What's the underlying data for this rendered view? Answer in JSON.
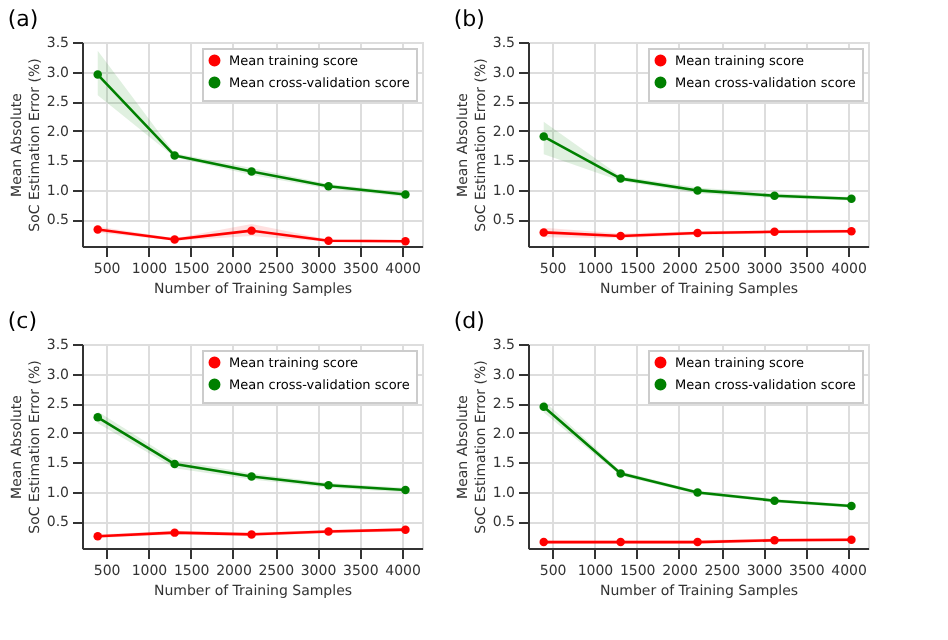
{
  "chart_data": [
    {
      "type": "line",
      "title": "(a)",
      "xlabel": "Number of Training Samples",
      "ylabel": "Mean Absolute\nSoC Estimation Error (%)",
      "x": [
        400,
        1310,
        2220,
        3130,
        4040
      ],
      "xlim": [
        214,
        4236
      ],
      "ylim": [
        0.05,
        3.5
      ],
      "xticks": [
        500,
        1000,
        1500,
        2000,
        2500,
        3000,
        3500,
        4000
      ],
      "yticks": [
        0.5,
        {
          "value": 1,
          "label": "1.0"
        },
        1.5,
        {
          "value": 2,
          "label": "2.0"
        },
        2.5,
        {
          "value": 3,
          "label": "3.0"
        },
        3.5
      ],
      "grid": true,
      "legend": "top right",
      "marker": "circle",
      "line_style": "solid",
      "series": [
        {
          "name": "Mean training score",
          "color": "#ff0000",
          "values": [
            0.33,
            0.16,
            0.31,
            0.14,
            0.13
          ],
          "lower": [
            0.28,
            0.14,
            0.22,
            0.12,
            0.11
          ],
          "upper": [
            0.38,
            0.18,
            0.42,
            0.16,
            0.15
          ]
        },
        {
          "name": "Mean cross-validation score",
          "color": "#008000",
          "values": [
            2.95,
            1.58,
            1.31,
            1.06,
            0.92
          ],
          "lower": [
            2.6,
            1.55,
            1.25,
            1.02,
            0.88
          ],
          "upper": [
            3.35,
            1.62,
            1.37,
            1.1,
            0.96
          ]
        }
      ]
    },
    {
      "type": "line",
      "title": "(b)",
      "xlabel": "Number of Training Samples",
      "ylabel": "Mean Absolute\nSoC Estimation Error (%)",
      "x": [
        400,
        1310,
        2220,
        3130,
        4040
      ],
      "xlim": [
        214,
        4236
      ],
      "ylim": [
        0.05,
        3.5
      ],
      "xticks": [
        500,
        1000,
        1500,
        2000,
        2500,
        3000,
        3500,
        4000
      ],
      "yticks": [
        0.5,
        {
          "value": 1,
          "label": "1.0"
        },
        1.5,
        {
          "value": 2,
          "label": "2.0"
        },
        2.5,
        {
          "value": 3,
          "label": "3.0"
        },
        3.5
      ],
      "grid": true,
      "legend": "top right",
      "marker": "circle",
      "line_style": "solid",
      "series": [
        {
          "name": "Mean training score",
          "color": "#ff0000",
          "values": [
            0.28,
            0.22,
            0.27,
            0.29,
            0.3
          ],
          "lower": [
            0.2,
            0.18,
            0.24,
            0.26,
            0.27
          ],
          "upper": [
            0.36,
            0.26,
            0.3,
            0.32,
            0.33
          ]
        },
        {
          "name": "Mean cross-validation score",
          "color": "#008000",
          "values": [
            1.9,
            1.19,
            0.99,
            0.9,
            0.85
          ],
          "lower": [
            1.6,
            1.15,
            0.94,
            0.86,
            0.82
          ],
          "upper": [
            2.15,
            1.23,
            1.04,
            0.94,
            0.88
          ]
        }
      ]
    },
    {
      "type": "line",
      "title": "(c)",
      "xlabel": "Number of Training Samples",
      "ylabel": "Mean Absolute\nSoC Estimation Error (%)",
      "x": [
        400,
        1310,
        2220,
        3130,
        4040
      ],
      "xlim": [
        214,
        4236
      ],
      "ylim": [
        0.05,
        3.5
      ],
      "xticks": [
        500,
        1000,
        1500,
        2000,
        2500,
        3000,
        3500,
        4000
      ],
      "yticks": [
        0.5,
        {
          "value": 1,
          "label": "1.0"
        },
        1.5,
        {
          "value": 2,
          "label": "2.0"
        },
        2.5,
        {
          "value": 3,
          "label": "3.0"
        },
        3.5
      ],
      "grid": true,
      "legend": "top right",
      "marker": "circle",
      "line_style": "solid",
      "series": [
        {
          "name": "Mean training score",
          "color": "#ff0000",
          "values": [
            0.25,
            0.31,
            0.28,
            0.33,
            0.36
          ],
          "lower": [
            0.22,
            0.28,
            0.25,
            0.3,
            0.33
          ],
          "upper": [
            0.28,
            0.34,
            0.31,
            0.36,
            0.39
          ]
        },
        {
          "name": "Mean cross-validation score",
          "color": "#008000",
          "values": [
            2.26,
            1.47,
            1.26,
            1.11,
            1.03
          ],
          "lower": [
            2.16,
            1.4,
            1.21,
            1.07,
            0.99
          ],
          "upper": [
            2.36,
            1.54,
            1.31,
            1.15,
            1.07
          ]
        }
      ]
    },
    {
      "type": "line",
      "title": "(d)",
      "xlabel": "Number of Training Samples",
      "ylabel": "Mean Absolute\nSoC Estimation Error (%)",
      "x": [
        400,
        1310,
        2220,
        3130,
        4040
      ],
      "xlim": [
        214,
        4236
      ],
      "ylim": [
        0.05,
        3.5
      ],
      "xticks": [
        500,
        1000,
        1500,
        2000,
        2500,
        3000,
        3500,
        4000
      ],
      "yticks": [
        0.5,
        {
          "value": 1,
          "label": "1.0"
        },
        1.5,
        {
          "value": 2,
          "label": "2.0"
        },
        2.5,
        {
          "value": 3,
          "label": "3.0"
        },
        3.5
      ],
      "grid": true,
      "legend": "top right",
      "marker": "circle",
      "line_style": "solid",
      "series": [
        {
          "name": "Mean training score",
          "color": "#ff0000",
          "values": [
            0.15,
            0.15,
            0.15,
            0.18,
            0.19
          ],
          "lower": [
            0.12,
            0.12,
            0.12,
            0.15,
            0.16
          ],
          "upper": [
            0.18,
            0.18,
            0.18,
            0.21,
            0.22
          ]
        },
        {
          "name": "Mean cross-validation score",
          "color": "#008000",
          "values": [
            2.44,
            1.31,
            0.99,
            0.85,
            0.76
          ],
          "lower": [
            2.34,
            1.27,
            0.96,
            0.82,
            0.73
          ],
          "upper": [
            2.54,
            1.35,
            1.02,
            0.88,
            0.79
          ]
        }
      ]
    }
  ]
}
